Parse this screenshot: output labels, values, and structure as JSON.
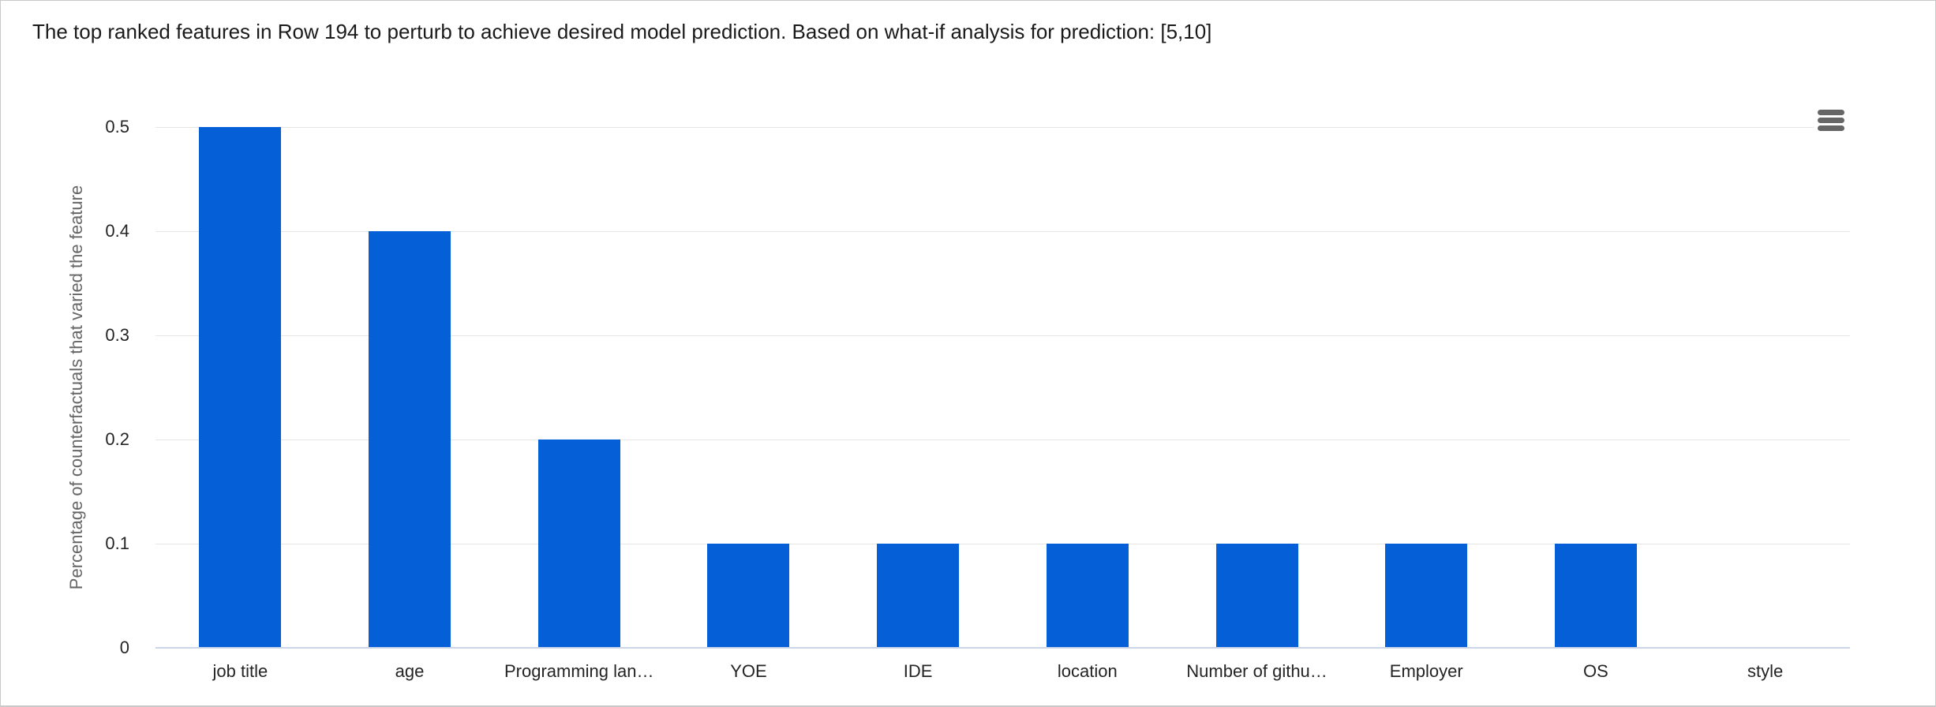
{
  "header": {
    "title": "The top ranked features in Row 194 to perturb to achieve desired model prediction. Based on what-if analysis for prediction: [5,10]"
  },
  "toolbar": {
    "menu_icon": "hamburger-icon",
    "menu_color": "#666666"
  },
  "chart_data": {
    "type": "bar",
    "categories": [
      "job title",
      "age",
      "Programming lan…",
      "YOE",
      "IDE",
      "location",
      "Number of githu…",
      "Employer",
      "OS",
      "style"
    ],
    "values": [
      0.5,
      0.4,
      0.2,
      0.1,
      0.1,
      0.1,
      0.1,
      0.1,
      0.1,
      0
    ],
    "title": "The top ranked features in Row 194 to perturb to achieve desired model prediction. Based on what-if analysis for prediction: [5,10]",
    "xlabel": "",
    "ylabel": "Percentage of counterfactuals that varied the feature",
    "ylim": [
      0,
      0.5
    ],
    "y_ticks": [
      0,
      0.1,
      0.2,
      0.3,
      0.4,
      0.5
    ],
    "y_tick_labels": [
      "0",
      "0.1",
      "0.2",
      "0.3",
      "0.4",
      "0.5"
    ],
    "grid": true,
    "legend": "none",
    "bar_color": "#0560d8",
    "gridline_color": "#e6e6e6",
    "axis_line_color": "#ccd6eb",
    "tick_label_color": "#242424",
    "axis_title_color": "#666666"
  }
}
